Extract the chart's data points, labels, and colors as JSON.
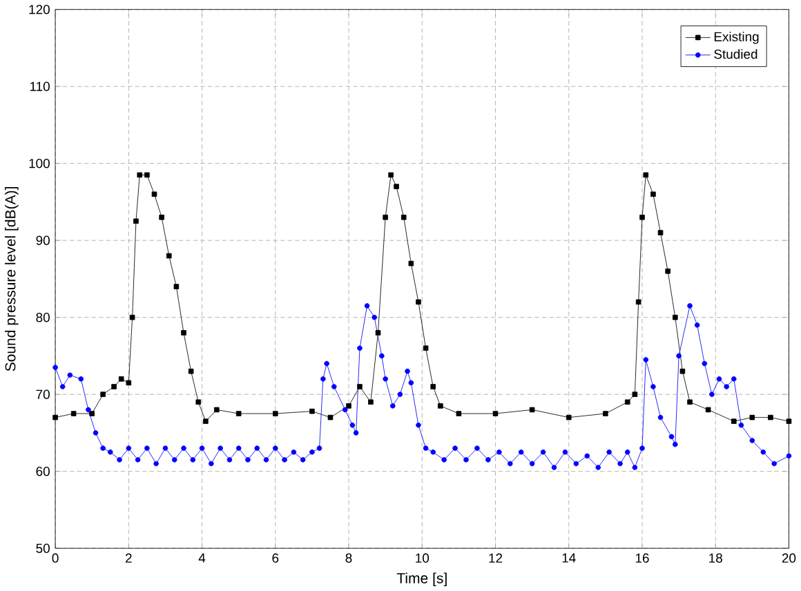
{
  "chart_data": {
    "type": "line",
    "xlabel": "Time [s]",
    "ylabel": "Sound pressure level  [dB(A)]",
    "xlim": [
      0,
      20
    ],
    "ylim": [
      50,
      120
    ],
    "xticks": [
      0,
      2,
      4,
      6,
      8,
      10,
      12,
      14,
      16,
      18,
      20
    ],
    "yticks": [
      50,
      60,
      70,
      80,
      90,
      100,
      110,
      120
    ],
    "grid": true,
    "legend": "top right",
    "series": [
      {
        "name": "Existing",
        "color": "#000000",
        "marker": "square",
        "x": [
          0,
          0.5,
          1,
          1.3,
          1.6,
          1.8,
          2.0,
          2.1,
          2.2,
          2.3,
          2.5,
          2.7,
          2.9,
          3.1,
          3.3,
          3.5,
          3.7,
          3.9,
          4.1,
          4.4,
          5,
          6,
          7,
          7.5,
          8.0,
          8.3,
          8.6,
          8.8,
          9.0,
          9.15,
          9.3,
          9.5,
          9.7,
          9.9,
          10.1,
          10.3,
          10.5,
          11,
          12,
          13,
          14,
          15,
          15.6,
          15.8,
          15.9,
          16.0,
          16.1,
          16.3,
          16.5,
          16.7,
          16.9,
          17.1,
          17.3,
          17.8,
          18.5,
          19,
          19.5,
          20
        ],
        "values": [
          67,
          67.5,
          67.5,
          70,
          71,
          72,
          71.5,
          80,
          92.5,
          98.5,
          98.5,
          96,
          93,
          88,
          84,
          78,
          73,
          69,
          66.5,
          68,
          67.5,
          67.5,
          67.8,
          67,
          68.5,
          71,
          69,
          78,
          93,
          98.5,
          97,
          93,
          87,
          82,
          76,
          71,
          68.5,
          67.5,
          67.5,
          68,
          67,
          67.5,
          69,
          70,
          82,
          93,
          98.5,
          96,
          91,
          86,
          80,
          73,
          69,
          68,
          66.5,
          67,
          67,
          66.5
        ]
      },
      {
        "name": "Studied",
        "color": "#0000ff",
        "marker": "circle",
        "x": [
          0,
          0.2,
          0.4,
          0.7,
          0.9,
          1.1,
          1.3,
          1.5,
          1.75,
          2.0,
          2.25,
          2.5,
          2.75,
          3.0,
          3.25,
          3.5,
          3.75,
          4.0,
          4.25,
          4.5,
          4.75,
          5.0,
          5.25,
          5.5,
          5.75,
          6.0,
          6.25,
          6.5,
          6.75,
          7.0,
          7.2,
          7.3,
          7.4,
          7.6,
          7.9,
          8.1,
          8.2,
          8.3,
          8.5,
          8.7,
          8.9,
          9.0,
          9.2,
          9.4,
          9.6,
          9.7,
          9.9,
          10.1,
          10.3,
          10.6,
          10.9,
          11.2,
          11.5,
          11.8,
          12.1,
          12.4,
          12.7,
          13.0,
          13.3,
          13.6,
          13.9,
          14.2,
          14.5,
          14.8,
          15.1,
          15.4,
          15.6,
          15.8,
          16.0,
          16.1,
          16.3,
          16.5,
          16.8,
          16.9,
          17.0,
          17.3,
          17.5,
          17.7,
          17.9,
          18.1,
          18.3,
          18.5,
          18.7,
          19.0,
          19.3,
          19.6,
          20
        ],
        "values": [
          73.5,
          71,
          72.5,
          72,
          68,
          65,
          63,
          62.5,
          61.5,
          63,
          61.5,
          63,
          61,
          63,
          61.5,
          63,
          61.5,
          63,
          61,
          63,
          61.5,
          63,
          61.5,
          63,
          61.5,
          63,
          61.5,
          62.5,
          61.5,
          62.5,
          63,
          72,
          74,
          71,
          68,
          66,
          65,
          76,
          81.5,
          80,
          75,
          72,
          68.5,
          70,
          73,
          71.5,
          66,
          63,
          62.5,
          61.5,
          63,
          61.5,
          63,
          61.5,
          62.5,
          61,
          62.5,
          61,
          62.5,
          60.5,
          62.5,
          61,
          62,
          60.5,
          62.5,
          61,
          62.5,
          60.5,
          63,
          74.5,
          71,
          67,
          64.5,
          63.5,
          75,
          81.5,
          79,
          74,
          70,
          72,
          71,
          72,
          66,
          64,
          62.5,
          61,
          62
        ]
      }
    ]
  }
}
